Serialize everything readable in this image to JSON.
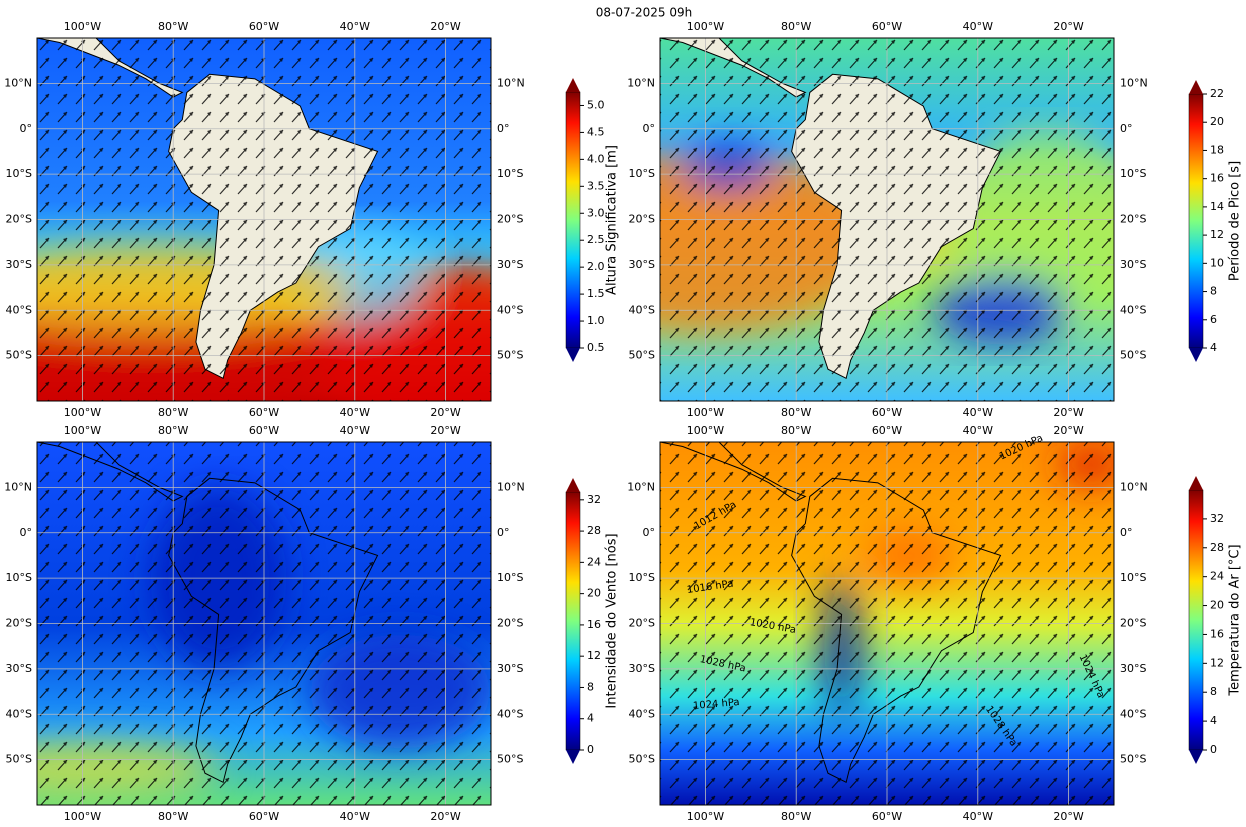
{
  "title": "08-07-2025 09h",
  "lon_labels": [
    "100°W",
    "80°W",
    "60°W",
    "40°W",
    "20°W"
  ],
  "lon_values": [
    -100,
    -80,
    -60,
    -40,
    -20
  ],
  "lat_labels": [
    "10°N",
    "0°",
    "10°S",
    "20°S",
    "30°S",
    "40°S",
    "50°S"
  ],
  "lat_values": [
    10,
    0,
    -10,
    -20,
    -30,
    -40,
    -50
  ],
  "lon_lim": [
    -110,
    -10
  ],
  "lat_lim": [
    -60,
    20
  ],
  "panels": [
    {
      "colorbar_label": "Altura Significativa [m]",
      "colorbar_lim": [
        0.5,
        5.25
      ],
      "colorbar_ticks": [
        {
          "value": 0.5,
          "label": "0.5"
        },
        {
          "value": 1,
          "label": "1.0"
        },
        {
          "value": 1.5,
          "label": "1.5"
        },
        {
          "value": 2,
          "label": "2.0"
        },
        {
          "value": 2.5,
          "label": "2.5"
        },
        {
          "value": 3,
          "label": "3.0"
        },
        {
          "value": 3.5,
          "label": "3.5"
        },
        {
          "value": 4,
          "label": "4.0"
        },
        {
          "value": 4.5,
          "label": "4.5"
        },
        {
          "value": 5,
          "label": "5.0"
        }
      ]
    },
    {
      "colorbar_label": "Período de Pico [s]",
      "colorbar_lim": [
        4,
        22
      ],
      "colorbar_ticks": [
        4,
        6,
        8,
        10,
        12,
        14,
        16,
        18,
        20,
        22
      ]
    },
    {
      "colorbar_label": "Intensidade do Vento [nós]",
      "colorbar_lim": [
        0,
        33
      ],
      "colorbar_ticks": [
        0,
        4,
        8,
        12,
        16,
        20,
        24,
        28,
        32
      ]
    },
    {
      "colorbar_label": "Temperatura do Ar [°C]",
      "colorbar_lim": [
        0,
        36
      ],
      "colorbar_ticks": [
        0,
        4,
        8,
        12,
        16,
        20,
        24,
        28,
        32
      ],
      "contour_labels": [
        "1020 hPa",
        "1012 hPa",
        "1016 hPa",
        "1020 hPa",
        "1028 hPa",
        "1024 hPa",
        "1024 hPa",
        "1028 hPa"
      ]
    }
  ]
}
